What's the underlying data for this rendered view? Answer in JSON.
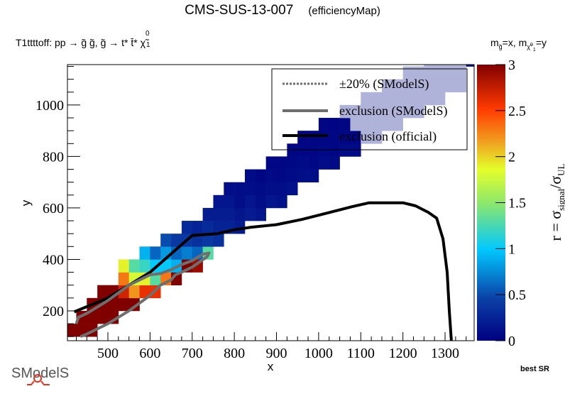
{
  "header": {
    "title": "CMS-SUS-13-007",
    "subtitle": "(efficiencyMap)",
    "process": "T1ttttoff: pp  → g̃ g̃, g̃  → t* t̄* χ̃",
    "process_sup": "0",
    "process_sub": "1",
    "axes_note_prefix": "m",
    "axes_note_sub1": "g̃",
    "axes_note_mid": "=x, m",
    "axes_note_sub2": "χ̃",
    "axes_note_sub2_sup": "0",
    "axes_note_sub2_sub": "1",
    "axes_note_suffix": "=y"
  },
  "footer": {
    "best_sr": "best SR",
    "logo_text": "SModelS"
  },
  "colors": {
    "official": "#000000",
    "smodels": "#6e6e6e",
    "light_band": "#b0b3d9"
  },
  "chart_data": {
    "type": "heatmap",
    "xlabel": "x",
    "ylabel": "y",
    "zlabel_main": "r = σ",
    "zlabel_sub1": "signal",
    "zlabel_slash": "/σ",
    "zlabel_sub2": "UL",
    "xlim": [
      404,
      1369
    ],
    "ylim": [
      84,
      1157
    ],
    "zlim": [
      0,
      3
    ],
    "x_ticks": [
      500,
      600,
      700,
      800,
      900,
      1000,
      1100,
      1200,
      1300
    ],
    "x_tick_labels": [
      "500",
      "600",
      "700",
      "800",
      "900",
      "1000",
      "1100",
      "1200",
      "1300"
    ],
    "y_ticks": [
      200,
      400,
      600,
      800,
      1000
    ],
    "y_tick_labels": [
      "200",
      "400",
      "600",
      "800",
      "1000"
    ],
    "z_ticks": [
      0,
      0.5,
      1,
      1.5,
      2,
      2.5,
      3
    ],
    "z_tick_labels": [
      "0",
      "0.5",
      "1",
      "1.5",
      "2",
      "2.5",
      "3"
    ],
    "x_bin": 25,
    "y_bin": 50,
    "columns": [
      {
        "x": 400,
        "y0": 100,
        "r": [
          3.2
        ]
      },
      {
        "x": 425,
        "y0": 100,
        "r": [
          3.2,
          3.2
        ]
      },
      {
        "x": 450,
        "y0": 100,
        "r": [
          3.2,
          3.2,
          3.2
        ]
      },
      {
        "x": 475,
        "y0": 150,
        "r": [
          3.2,
          3.2,
          3.2
        ]
      },
      {
        "x": 500,
        "y0": 150,
        "r": [
          3.2,
          3.2,
          3.2
        ]
      },
      {
        "x": 525,
        "y0": 200,
        "r": [
          3.2,
          2.7,
          2.3,
          1.9
        ]
      },
      {
        "x": 550,
        "y0": 200,
        "r": [
          3.2,
          2.2,
          1.8,
          1.3
        ]
      },
      {
        "x": 575,
        "y0": 250,
        "r": [
          2.6,
          1.9,
          1.2,
          0.9
        ]
      },
      {
        "x": 600,
        "y0": 250,
        "r": [
          2.6,
          1.3,
          1.0,
          0.6
        ]
      },
      {
        "x": 625,
        "y0": 300,
        "r": [
          2.3,
          1.0,
          0.8,
          0.5
        ]
      },
      {
        "x": 650,
        "y0": 300,
        "r": [
          3.2,
          0.9,
          0.6,
          0.4
        ]
      },
      {
        "x": 675,
        "y0": 350,
        "r": [
          3.2,
          0.7,
          0.4,
          0.3
        ]
      },
      {
        "x": 700,
        "y0": 350,
        "r": [
          2.9,
          0.6,
          0.35,
          0.25
        ]
      },
      {
        "x": 725,
        "y0": 400,
        "r": [
          1.3,
          0.4,
          0.3,
          0.2
        ]
      },
      {
        "x": 750,
        "y0": 450,
        "r": [
          0.35,
          0.25,
          0.2,
          0.15
        ]
      },
      {
        "x": 775,
        "y0": 500,
        "r": [
          0.25,
          0.2,
          0.15,
          0.1
        ]
      },
      {
        "x": 800,
        "y0": 500,
        "r": [
          0.2,
          0.15,
          0.1,
          0.1
        ]
      },
      {
        "x": 825,
        "y0": 550,
        "r": [
          0.2,
          0.15,
          0.1,
          0.08
        ]
      },
      {
        "x": 850,
        "y0": 550,
        "r": [
          0.15,
          0.1,
          0.08,
          0.05
        ]
      },
      {
        "x": 875,
        "y0": 600,
        "r": [
          0.15,
          0.1,
          0.08,
          0.05
        ]
      },
      {
        "x": 900,
        "y0": 600,
        "r": [
          0.12,
          0.1,
          0.06,
          0.05
        ]
      },
      {
        "x": 925,
        "y0": 650,
        "r": [
          0.12,
          0.08,
          0.06,
          0.04
        ]
      },
      {
        "x": 950,
        "y0": 700,
        "r": [
          0.1,
          0.08,
          0.05,
          0.04
        ]
      },
      {
        "x": 975,
        "y0": 700,
        "r": [
          0.1,
          0.06,
          0.05,
          0.04
        ]
      },
      {
        "x": 1000,
        "y0": 750,
        "r": [
          0.1,
          0.06,
          0.05,
          0.04
        ]
      },
      {
        "x": 1025,
        "y0": 750,
        "r": [
          0.08,
          0.05,
          0.04,
          0.03
        ]
      },
      {
        "x": 1050,
        "y0": 800,
        "r": [
          0.08,
          0.05,
          0.04,
          -1
        ]
      },
      {
        "x": 1075,
        "y0": 800,
        "r": [
          0.08,
          0.05,
          -1,
          -1
        ]
      },
      {
        "x": 1100,
        "y0": 850,
        "r": [
          -1,
          -1,
          -1,
          -1
        ]
      },
      {
        "x": 1125,
        "y0": 850,
        "r": [
          -1,
          -1,
          -1,
          -1
        ]
      },
      {
        "x": 1150,
        "y0": 900,
        "r": [
          -1,
          -1,
          -1,
          -1
        ]
      },
      {
        "x": 1175,
        "y0": 900,
        "r": [
          -1,
          -1,
          -1,
          -1
        ]
      },
      {
        "x": 1200,
        "y0": 950,
        "r": [
          -1,
          -1,
          -1,
          -1
        ]
      },
      {
        "x": 1225,
        "y0": 950,
        "r": [
          -1,
          -1,
          -1,
          -1
        ]
      },
      {
        "x": 1250,
        "y0": 1000,
        "r": [
          -1,
          -1,
          -1,
          -1
        ]
      },
      {
        "x": 1275,
        "y0": 1000,
        "r": [
          -1,
          -1,
          -1,
          -1
        ]
      },
      {
        "x": 1300,
        "y0": 1050,
        "r": [
          -1,
          -1,
          -1
        ]
      },
      {
        "x": 1325,
        "y0": 1050,
        "r": [
          -1,
          -1,
          -1
        ]
      },
      {
        "x": 1350,
        "y0": 1150,
        "r": [
          0.05
        ]
      }
    ],
    "series": [
      {
        "name": "exclusion (official)",
        "style": "solid-black",
        "x": [
          420,
          500,
          600,
          700,
          760,
          800,
          840,
          900,
          960,
          1020,
          1080,
          1120,
          1160,
          1200,
          1230,
          1260,
          1280,
          1295,
          1305,
          1310,
          1315
        ],
        "y": [
          196,
          250,
          350,
          493,
          500,
          515,
          525,
          535,
          555,
          580,
          605,
          620,
          620,
          620,
          608,
          583,
          560,
          480,
          350,
          200,
          84
        ]
      },
      {
        "name": "exclusion (SModelS)",
        "style": "solid-gray",
        "x": [
          425,
          430,
          450,
          500,
          550,
          600,
          625,
          650,
          675,
          700,
          725,
          740,
          735,
          700,
          675,
          660,
          650,
          625,
          600,
          550,
          500,
          450,
          435
        ],
        "y": [
          150,
          175,
          190,
          240,
          300,
          340,
          345,
          360,
          380,
          395,
          420,
          425,
          410,
          370,
          350,
          340,
          320,
          300,
          260,
          200,
          150,
          110,
          100
        ]
      }
    ],
    "legend": {
      "position": "top-right",
      "entries": [
        {
          "label": "±20% (SModelS)",
          "style": "dotted-gray"
        },
        {
          "label": "exclusion (SModelS)",
          "style": "solid-gray"
        },
        {
          "label": "exclusion (official)",
          "style": "solid-black"
        }
      ]
    }
  }
}
